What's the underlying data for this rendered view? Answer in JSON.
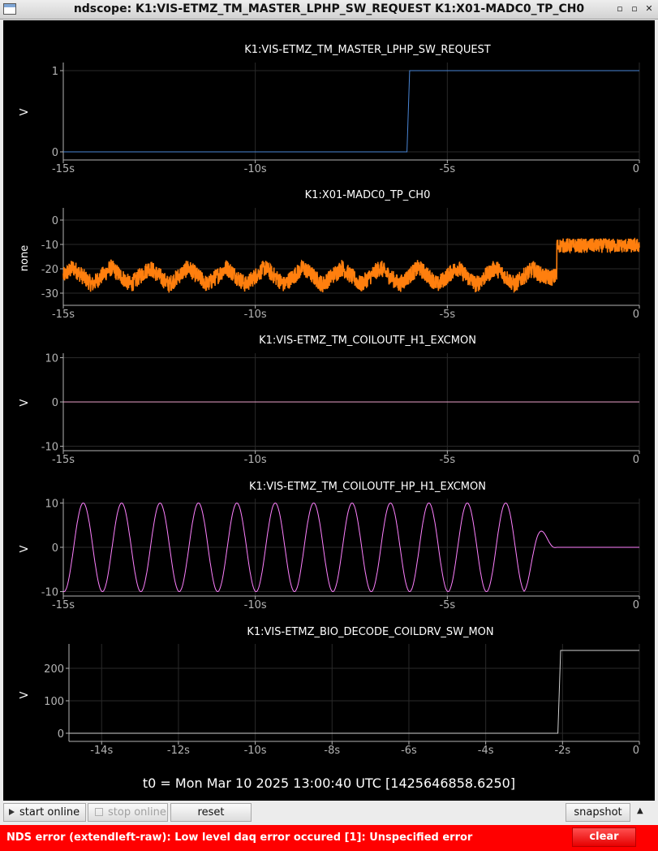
{
  "window": {
    "title": "ndscope: K1:VIS-ETMZ_TM_MASTER_LPHP_SW_REQUEST K1:X01-MADC0_TP_CH0",
    "minimize_glyph": "▫",
    "maximize_glyph": "▫",
    "close_glyph": "✕"
  },
  "colors": {
    "background": "#000000",
    "axis": "#b4b4b4",
    "grid": "#2a2a2a",
    "trace_blue": "#4a86d6",
    "trace_orange": "#ff7f0e",
    "trace_pink": "#e8a0c8",
    "trace_magenta": "#ff80ff",
    "trace_gray": "#d0d0d0",
    "error_red": "#ff0000"
  },
  "chart_data": [
    {
      "type": "line",
      "title": "K1:VIS-ETMZ_TM_MASTER_LPHP_SW_REQUEST",
      "ylabel": "V",
      "xlim": [
        -15,
        0
      ],
      "ylim": [
        -0.1,
        1.1
      ],
      "xticks": [
        {
          "v": -15,
          "label": "-15s"
        },
        {
          "v": -10,
          "label": "-10s"
        },
        {
          "v": -5,
          "label": "-5s"
        },
        {
          "v": 0,
          "label": "0"
        }
      ],
      "yticks": [
        {
          "v": 0,
          "label": "0"
        },
        {
          "v": 1,
          "label": "1"
        }
      ],
      "series": [
        {
          "color": "#4a86d6",
          "kind": "step",
          "x": [
            -15,
            -6.05,
            -5.98,
            0
          ],
          "y": [
            0,
            0,
            1,
            1
          ]
        }
      ]
    },
    {
      "type": "line",
      "title": "K1:X01-MADC0_TP_CH0",
      "ylabel": "none",
      "xlim": [
        -15,
        0
      ],
      "ylim": [
        -35,
        5
      ],
      "xticks": [
        {
          "v": -15,
          "label": "-15s"
        },
        {
          "v": -10,
          "label": "-10s"
        },
        {
          "v": -5,
          "label": "-5s"
        },
        {
          "v": 0,
          "label": "0"
        }
      ],
      "yticks": [
        {
          "v": 0,
          "label": "0"
        },
        {
          "v": -10,
          "label": "-10"
        },
        {
          "v": -20,
          "label": "-20"
        },
        {
          "v": -30,
          "label": "-30"
        }
      ],
      "series": [
        {
          "color": "#ff7f0e",
          "kind": "noisy-triangle",
          "period": 1,
          "center": -23,
          "amplitude": 3.5,
          "noise": 3.5,
          "transition_x": -2.15,
          "after_center": -10.5,
          "after_noise": 3,
          "decay_start": -2.9
        }
      ]
    },
    {
      "type": "line",
      "title": "K1:VIS-ETMZ_TM_COILOUTF_H1_EXCMON",
      "ylabel": "V",
      "xlim": [
        -15,
        0
      ],
      "ylim": [
        -11,
        11
      ],
      "xticks": [
        {
          "v": -15,
          "label": "-15s"
        },
        {
          "v": -10,
          "label": "-10s"
        },
        {
          "v": -5,
          "label": "-5s"
        },
        {
          "v": 0,
          "label": "0"
        }
      ],
      "yticks": [
        {
          "v": 10,
          "label": "10"
        },
        {
          "v": 0,
          "label": "0"
        },
        {
          "v": -10,
          "label": "-10"
        }
      ],
      "series": [
        {
          "color": "#e8a0c8",
          "kind": "flat",
          "x": [
            -15,
            0
          ],
          "y": [
            0,
            0
          ]
        }
      ]
    },
    {
      "type": "line",
      "title": "K1:VIS-ETMZ_TM_COILOUTF_HP_H1_EXCMON",
      "ylabel": "V",
      "xlim": [
        -15,
        0
      ],
      "ylim": [
        -11,
        11
      ],
      "xticks": [
        {
          "v": -15,
          "label": "-15s"
        },
        {
          "v": -10,
          "label": "-10s"
        },
        {
          "v": -5,
          "label": "-5s"
        },
        {
          "v": 0,
          "label": "0"
        }
      ],
      "yticks": [
        {
          "v": 10,
          "label": "10"
        },
        {
          "v": 0,
          "label": "0"
        },
        {
          "v": -10,
          "label": "-10"
        }
      ],
      "series": [
        {
          "color": "#ff80ff",
          "kind": "sine",
          "period": 1,
          "amplitude": 10,
          "phase_at_min": -14.98,
          "decay_start": -3.0,
          "end_x": -2.15
        }
      ]
    },
    {
      "type": "line",
      "title": "K1:VIS-ETMZ_BIO_DECODE_COILDRV_SW_MON",
      "ylabel": "V",
      "xlim": [
        -14.85,
        0
      ],
      "ylim": [
        -25,
        275
      ],
      "xticks": [
        {
          "v": -14,
          "label": "-14s"
        },
        {
          "v": -12,
          "label": "-12s"
        },
        {
          "v": -10,
          "label": "-10s"
        },
        {
          "v": -8,
          "label": "-8s"
        },
        {
          "v": -6,
          "label": "-6s"
        },
        {
          "v": -4,
          "label": "-4s"
        },
        {
          "v": -2,
          "label": "-2s"
        },
        {
          "v": 0,
          "label": "0"
        }
      ],
      "yticks": [
        {
          "v": 0,
          "label": "0"
        },
        {
          "v": 100,
          "label": "100"
        },
        {
          "v": 200,
          "label": "200"
        }
      ],
      "series": [
        {
          "color": "#d0d0d0",
          "kind": "step",
          "x": [
            -14.85,
            -2.12,
            -2.05,
            0
          ],
          "y": [
            0,
            0,
            255,
            255
          ]
        }
      ]
    }
  ],
  "footer": {
    "t0_text": "t0 = Mon Mar 10 2025 13:00:40 UTC [1425646858.6250]"
  },
  "controls": {
    "start_online": "start online",
    "start_online_icon": "play-icon",
    "stop_online": "stop online",
    "reset": "reset",
    "snapshot": "snapshot",
    "collapse_glyph": "▲"
  },
  "error": {
    "message": "NDS error (extendleft-raw): Low level daq error occured [1]: Unspecified error",
    "clear_label": "clear"
  }
}
